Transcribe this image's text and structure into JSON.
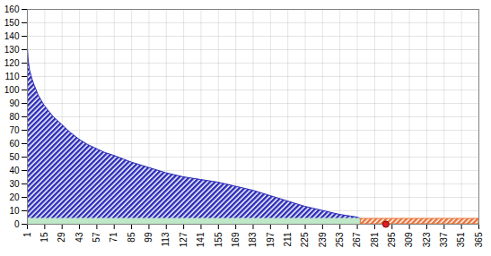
{
  "chart_data": {
    "type": "area",
    "xlim": [
      1,
      365
    ],
    "xticks": [
      1,
      15,
      29,
      43,
      57,
      71,
      85,
      99,
      113,
      127,
      141,
      155,
      169,
      183,
      197,
      211,
      225,
      239,
      253,
      267,
      281,
      295,
      309,
      323,
      337,
      351,
      365
    ],
    "ylim": [
      0,
      160
    ],
    "yticks": [
      0,
      10,
      20,
      30,
      40,
      50,
      60,
      70,
      80,
      90,
      100,
      110,
      120,
      130,
      140,
      150,
      160
    ],
    "grid": true,
    "series": [
      {
        "type": "area",
        "color": "#2b2bb8",
        "line_style": "hatched",
        "x": [
          1,
          2,
          3,
          5,
          7,
          10,
          15,
          22,
          29,
          36,
          43,
          50,
          57,
          64,
          71,
          85,
          99,
          113,
          127,
          141,
          155,
          169,
          183,
          197,
          211,
          225,
          239,
          253,
          267,
          270
        ],
        "values": [
          137,
          122,
          115,
          108,
          103,
          96,
          88,
          80,
          74,
          68,
          63,
          59,
          56,
          53,
          51,
          46,
          42,
          38,
          35,
          33,
          31,
          28,
          25,
          21,
          17,
          13,
          10,
          7,
          5,
          4
        ]
      },
      {
        "type": "area",
        "color": "#bfe8c8",
        "line_style": "solid",
        "x": [
          1,
          270
        ],
        "values": [
          4,
          4
        ]
      },
      {
        "type": "area",
        "color": "#e8743b",
        "line_style": "hatched",
        "x": [
          270,
          365
        ],
        "values": [
          4,
          4
        ]
      },
      {
        "type": "scatter",
        "color": "#e02020",
        "marker": "circle",
        "x": [
          290
        ],
        "values": [
          0
        ]
      }
    ]
  }
}
